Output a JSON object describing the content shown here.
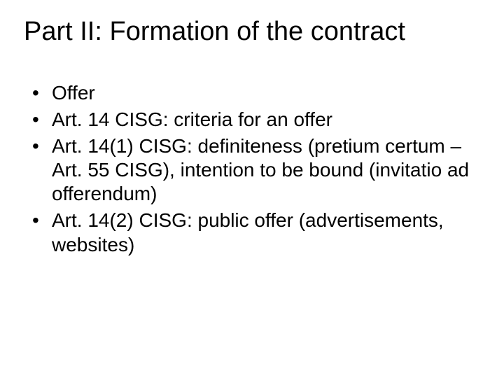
{
  "slide": {
    "title": "Part II: Formation of the contract",
    "title_fontsize": 38,
    "body_fontsize": 28,
    "text_color": "#000000",
    "background_color": "#ffffff",
    "font_family": "Arial",
    "bullets": [
      "Offer",
      "Art. 14 CISG: criteria for an offer",
      "Art. 14(1) CISG: definiteness (pretium certum – Art. 55 CISG), intention to be bound (invitatio ad offerendum)",
      "Art. 14(2) CISG: public offer (advertisements, websites)"
    ]
  }
}
